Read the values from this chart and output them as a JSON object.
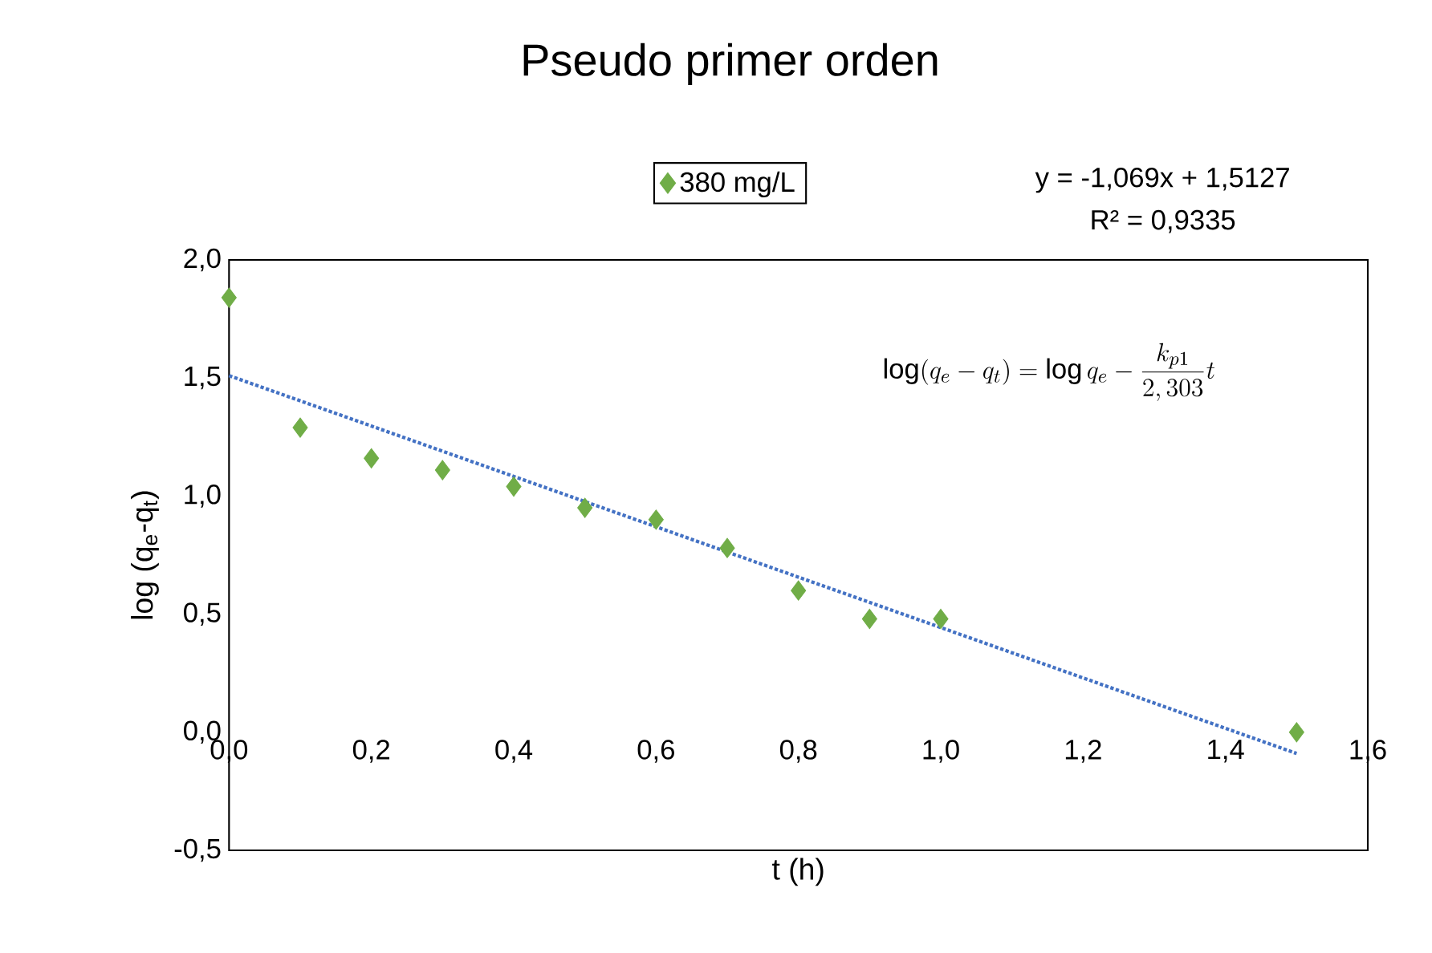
{
  "chart_data": {
    "type": "scatter",
    "title": "Pseudo primer orden",
    "xlabel": "t (h)",
    "ylabel": "log (q$_{e}$-q$_{t}$)",
    "xlim": [
      0,
      1.6
    ],
    "ylim": [
      -0.5,
      2.0
    ],
    "xticks": [
      {
        "value": 0,
        "label": "0,0"
      },
      {
        "value": 0.2,
        "label": "0,2"
      },
      {
        "value": 0.4,
        "label": "0,4"
      },
      {
        "value": 0.6,
        "label": "0,6"
      },
      {
        "value": 0.8,
        "label": "0,8"
      },
      {
        "value": 1.0,
        "label": "1,0"
      },
      {
        "value": 1.2,
        "label": "1,2"
      },
      {
        "value": 1.4,
        "label": "1,4"
      },
      {
        "value": 1.6,
        "label": "1,6"
      }
    ],
    "yticks": [
      {
        "value": -0.5,
        "label": "-0,5"
      },
      {
        "value": 0,
        "label": "0,0"
      },
      {
        "value": 0.5,
        "label": "0,5"
      },
      {
        "value": 1.0,
        "label": "1,0"
      },
      {
        "value": 1.5,
        "label": "1,5"
      },
      {
        "value": 2.0,
        "label": "2,0"
      }
    ],
    "grid": false,
    "legend": "top",
    "series": [
      {
        "name": "380 mg/L",
        "marker": "diamond",
        "color": "#70ad47",
        "x": [
          0,
          0.1,
          0.2,
          0.3,
          0.4,
          0.5,
          0.6,
          0.7,
          0.8,
          0.9,
          1.0,
          1.5
        ],
        "values": [
          1.84,
          1.29,
          1.16,
          1.11,
          1.04,
          0.95,
          0.9,
          0.78,
          0.6,
          0.48,
          0.48,
          0.0
        ]
      },
      {
        "type": "line",
        "line_style": "dotted",
        "marker": "none",
        "color": "#4472c4",
        "x": [
          0,
          1.5
        ],
        "values": [
          1.51,
          -0.09
        ]
      }
    ],
    "annotations": [
      "y = -1,069x + 1,5127",
      "R² = 0,9335",
      "\\log(q_e - q_t) = \\log q_e - \\frac{k_{p1}}{2,303} t"
    ]
  }
}
